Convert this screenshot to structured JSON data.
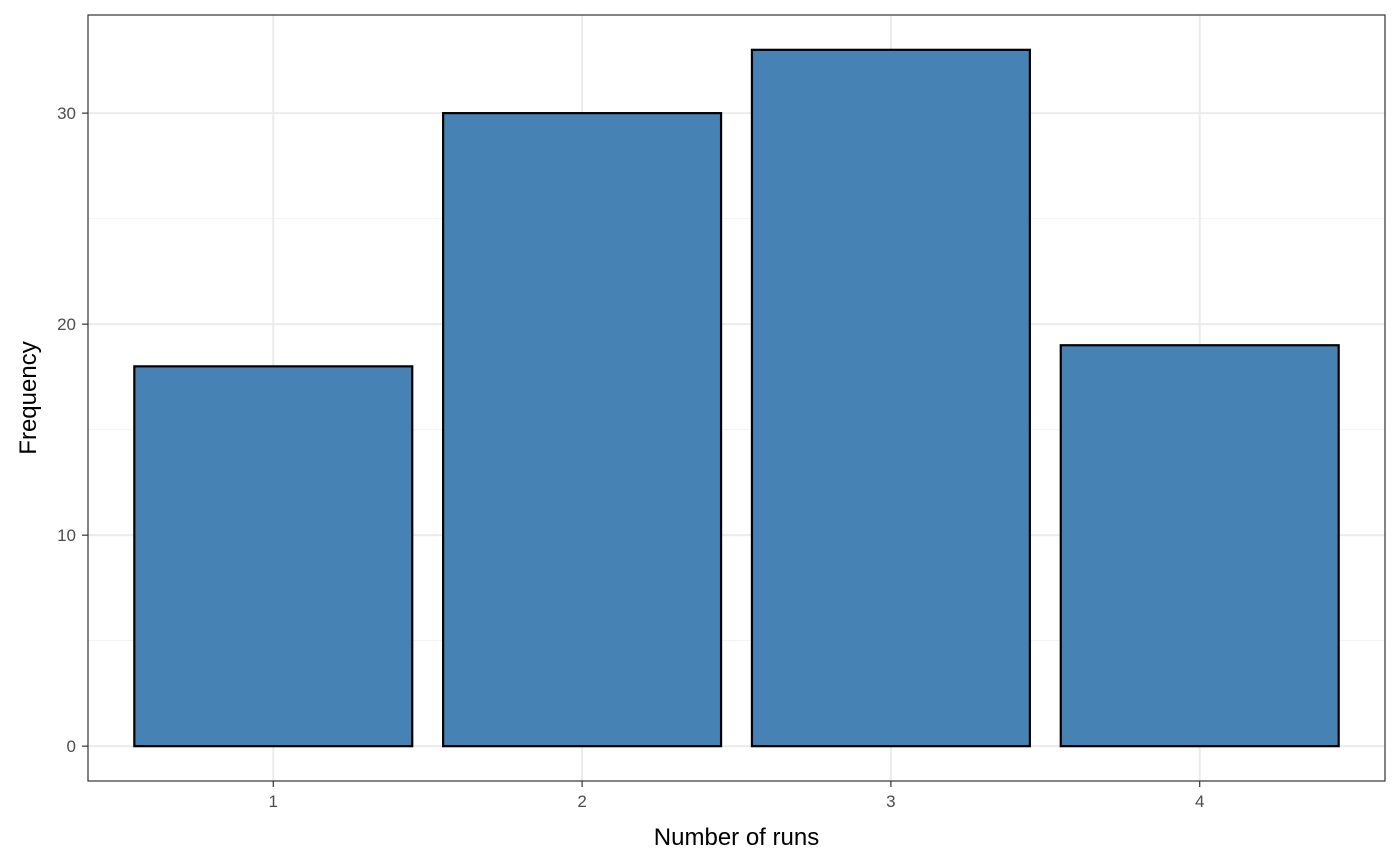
{
  "chart_data": {
    "type": "bar",
    "title": "",
    "xlabel": "Number of runs",
    "ylabel": "Frequency",
    "categories": [
      "1",
      "2",
      "3",
      "4"
    ],
    "values": [
      18,
      30,
      33,
      19
    ],
    "ylim": [
      -1.65,
      34.65
    ],
    "yticks": [
      0,
      10,
      20,
      30
    ],
    "y_minor_ticks": [
      5,
      15,
      25
    ],
    "grid": true,
    "legend": "none",
    "colors": {
      "bar_fill": "#4682b4",
      "bar_stroke": "#000000",
      "grid_major": "#ebebeb",
      "grid_minor": "#f3f3f3",
      "panel_border": "#333333",
      "tick_label": "#4d4d4d"
    }
  }
}
